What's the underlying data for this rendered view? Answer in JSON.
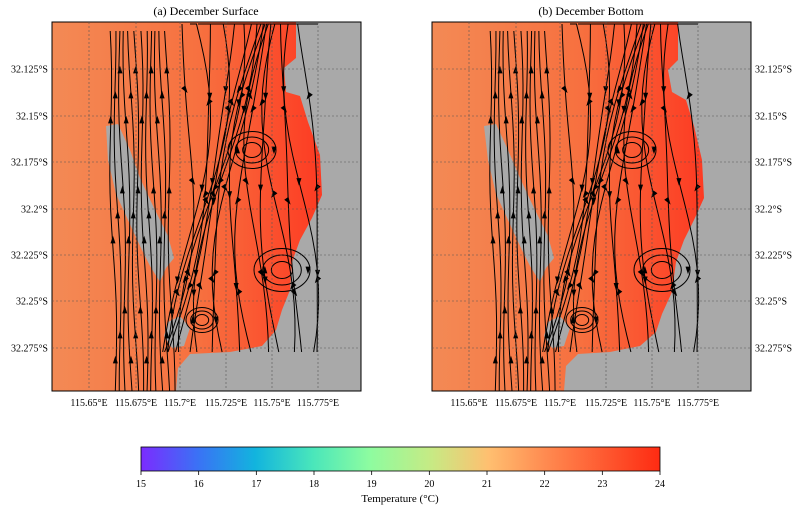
{
  "panels": [
    {
      "id": "surface",
      "title": "(a) December Surface",
      "lat_labels_side": "left",
      "x_ticks": [
        "115.65°E",
        "115.675°E",
        "115.7°E",
        "115.725°E",
        "115.75°E",
        "115.775°E"
      ],
      "y_ticks": [
        "32.125°S",
        "32.15°S",
        "32.175°S",
        "32.2°S",
        "32.225°S",
        "32.25°S",
        "32.275°S"
      ]
    },
    {
      "id": "bottom",
      "title": "(b) December Bottom",
      "lat_labels_side": "right",
      "x_ticks": [
        "115.65°E",
        "115.675°E",
        "115.7°E",
        "115.725°E",
        "115.75°E",
        "115.775°E"
      ],
      "y_ticks": [
        "32.125°S",
        "32.15°S",
        "32.175°S",
        "32.2°S",
        "32.225°S",
        "32.25°S",
        "32.275°S"
      ]
    }
  ],
  "colorbar": {
    "label": "Temperature (°C)",
    "ticks": [
      "15",
      "16",
      "17",
      "18",
      "19",
      "20",
      "21",
      "22",
      "23",
      "24"
    ],
    "min": 15,
    "max": 24,
    "colors": [
      "#7b2cff",
      "#3a72f5",
      "#12b4de",
      "#49e6bb",
      "#8dfca0",
      "#c7ea84",
      "#ffbf70",
      "#ff8a50",
      "#fe2b12"
    ]
  },
  "colors": {
    "land": "#a9a9a9",
    "water_base": "#f5854e",
    "water_warm": "#fb5a35",
    "water_hot": "#ff2a1a",
    "streamline": "#000000"
  }
}
